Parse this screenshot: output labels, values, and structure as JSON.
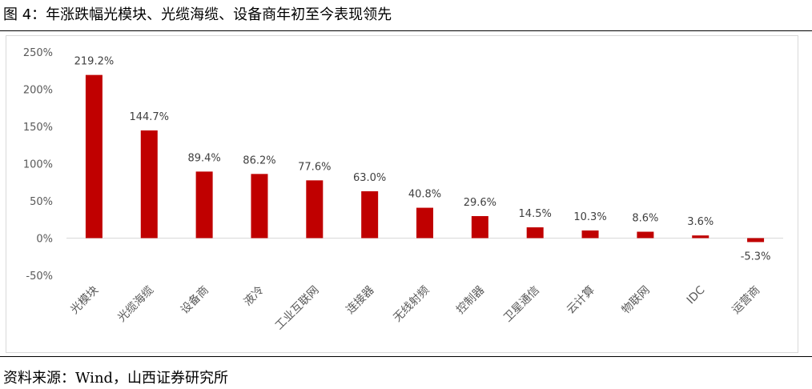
{
  "figure": {
    "title": "图 4：年涨跌幅光模块、光缆海缆、设备商年初至今表现领先",
    "source": "资料来源：Wind，山西证券研究所"
  },
  "colors": {
    "bar": "#c00000",
    "grid": "#d9d9d9",
    "axis_text": "#595959"
  },
  "chart_data": {
    "type": "bar",
    "title": "",
    "xlabel": "",
    "ylabel": "",
    "ylim": [
      -50,
      250
    ],
    "y_ticks": [
      250,
      200,
      150,
      100,
      50,
      0,
      -50
    ],
    "y_tick_labels": [
      "250%",
      "200%",
      "150%",
      "100%",
      "50%",
      "0%",
      "-50%"
    ],
    "grid": false,
    "legend": "none",
    "categories": [
      "光模块",
      "光缆海缆",
      "设备商",
      "液冷",
      "工业互联网",
      "连接器",
      "无线射频",
      "控制器",
      "卫星通信",
      "云计算",
      "物联网",
      "IDC",
      "运营商"
    ],
    "values": [
      219.2,
      144.7,
      89.4,
      86.2,
      77.6,
      63.0,
      40.8,
      29.6,
      14.5,
      10.3,
      8.6,
      3.6,
      -5.3
    ],
    "data_labels": [
      "219.2%",
      "144.7%",
      "89.4%",
      "86.2%",
      "77.6%",
      "63.0%",
      "40.8%",
      "29.6%",
      "14.5%",
      "10.3%",
      "8.6%",
      "3.6%",
      "-5.3%"
    ]
  }
}
